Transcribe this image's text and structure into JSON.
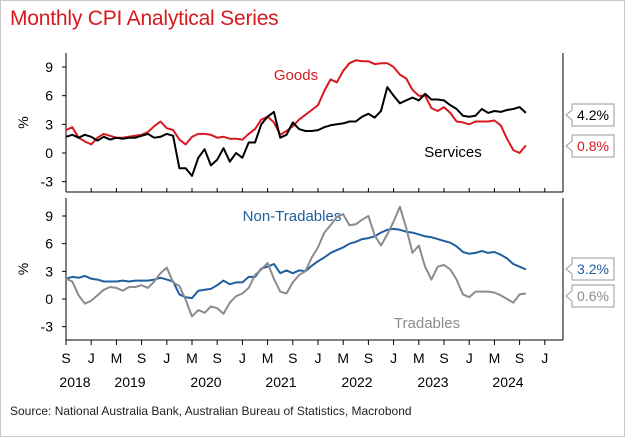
{
  "title": "Monthly CPI Analytical Series",
  "source": "Source: National Australia Bank, Australian Bureau of Statistics, Macrobond",
  "colors": {
    "title": "#d71920",
    "goods": "#d71920",
    "services": "#000000",
    "nontradables": "#1f5fa0",
    "tradables": "#8c8c8c"
  },
  "x_axis": {
    "month_labels": [
      "S",
      "J",
      "M",
      "S",
      "J",
      "M",
      "S",
      "J",
      "M",
      "S",
      "J",
      "M",
      "S",
      "J",
      "M",
      "S",
      "J",
      "M",
      "S",
      "J"
    ],
    "year_labels": [
      "2018",
      "2019",
      "2020",
      "2021",
      "2022",
      "2023",
      "2024"
    ]
  },
  "chart_data": [
    {
      "type": "line",
      "ylabel": "%",
      "yticks": [
        -3,
        0,
        3,
        6,
        9
      ],
      "ylim": [
        -4.5,
        11.5
      ],
      "x_start": "2018-09",
      "x_end": "2024-09",
      "series": [
        {
          "name": "Goods",
          "end_label": "0.8%",
          "values": [
            2.4,
            2.7,
            1.6,
            1.2,
            0.9,
            1.6,
            2.0,
            1.8,
            1.6,
            1.6,
            1.7,
            1.8,
            1.9,
            2.2,
            2.8,
            3.3,
            2.6,
            2.4,
            1.4,
            0.9,
            1.7,
            2.0,
            2.0,
            1.9,
            1.6,
            1.7,
            1.5,
            1.5,
            1.4,
            2.0,
            2.5,
            3.5,
            3.8,
            3.2,
            1.9,
            2.3,
            2.8,
            3.5,
            4.0,
            4.5,
            5.0,
            6.5,
            7.7,
            7.4,
            8.6,
            9.4,
            9.7,
            9.6,
            9.6,
            9.3,
            9.4,
            9.4,
            9.0,
            8.2,
            7.8,
            6.6,
            6.0,
            6.0,
            4.7,
            4.4,
            4.8,
            4.2,
            3.3,
            3.2,
            3.0,
            3.3,
            3.3,
            3.3,
            3.4,
            2.9,
            1.5,
            0.3,
            0.0,
            0.8
          ]
        },
        {
          "name": "Services",
          "end_label": "4.2%",
          "values": [
            1.7,
            1.9,
            1.6,
            1.9,
            1.7,
            1.3,
            1.7,
            1.4,
            1.6,
            1.5,
            1.6,
            1.6,
            1.8,
            2.0,
            1.6,
            1.7,
            2.0,
            1.8,
            -1.6,
            -1.6,
            -2.4,
            -0.5,
            0.4,
            -1.3,
            -0.7,
            0.5,
            -0.9,
            0.0,
            -0.5,
            1.1,
            1.1,
            3.0,
            3.8,
            4.3,
            1.6,
            1.9,
            3.2,
            2.5,
            2.3,
            2.3,
            2.4,
            2.7,
            2.9,
            3.0,
            3.1,
            3.3,
            3.3,
            3.8,
            4.1,
            3.7,
            4.4,
            6.9,
            6.0,
            5.2,
            5.5,
            5.8,
            5.5,
            6.2,
            5.6,
            5.6,
            5.5,
            5.0,
            4.6,
            3.9,
            3.8,
            3.9,
            4.6,
            4.2,
            4.4,
            4.3,
            4.5,
            4.6,
            4.8,
            4.2
          ]
        }
      ]
    },
    {
      "type": "line",
      "ylabel": "%",
      "yticks": [
        -3,
        0,
        3,
        6,
        9
      ],
      "ylim": [
        -4.5,
        11.5
      ],
      "x_start": "2018-09",
      "x_end": "2024-09",
      "series": [
        {
          "name": "Non-Tradables",
          "end_label": "3.2%",
          "values": [
            2.2,
            2.4,
            2.3,
            2.5,
            2.2,
            2.1,
            1.9,
            1.9,
            1.9,
            2.0,
            1.9,
            2.0,
            2.0,
            2.0,
            2.1,
            2.3,
            2.1,
            1.9,
            0.5,
            0.2,
            0.1,
            0.9,
            1.0,
            1.1,
            1.5,
            2.0,
            1.6,
            1.8,
            1.8,
            2.4,
            2.4,
            3.3,
            3.5,
            3.8,
            2.8,
            3.1,
            2.8,
            3.1,
            3.0,
            3.6,
            4.1,
            4.5,
            5.0,
            5.3,
            5.6,
            6.0,
            6.2,
            6.5,
            6.6,
            6.8,
            7.2,
            7.5,
            7.6,
            7.5,
            7.3,
            7.2,
            7.0,
            6.8,
            6.7,
            6.5,
            6.3,
            6.1,
            5.7,
            5.1,
            4.9,
            5.0,
            5.2,
            5.0,
            5.1,
            4.8,
            4.4,
            3.8,
            3.5,
            3.2
          ]
        },
        {
          "name": "Tradables",
          "end_label": "0.6%",
          "values": [
            2.2,
            1.9,
            0.4,
            -0.5,
            -0.2,
            0.4,
            1.0,
            1.3,
            1.2,
            0.9,
            1.3,
            1.3,
            1.5,
            1.2,
            1.9,
            2.8,
            3.4,
            1.8,
            1.4,
            -0.1,
            -1.9,
            -1.2,
            -1.5,
            -0.8,
            -1.0,
            -1.6,
            -0.4,
            0.3,
            0.6,
            1.2,
            2.6,
            3.2,
            3.9,
            2.2,
            0.8,
            0.6,
            1.8,
            2.6,
            3.0,
            4.5,
            5.6,
            7.2,
            8.0,
            8.9,
            9.2,
            8.0,
            8.1,
            8.6,
            9.0,
            6.9,
            5.8,
            7.0,
            8.4,
            10.0,
            7.7,
            5.0,
            5.8,
            3.5,
            2.1,
            3.5,
            3.7,
            3.2,
            2.1,
            0.5,
            0.2,
            0.8,
            0.8,
            0.8,
            0.7,
            0.4,
            0.0,
            -0.4,
            0.5,
            0.6
          ]
        }
      ]
    }
  ]
}
